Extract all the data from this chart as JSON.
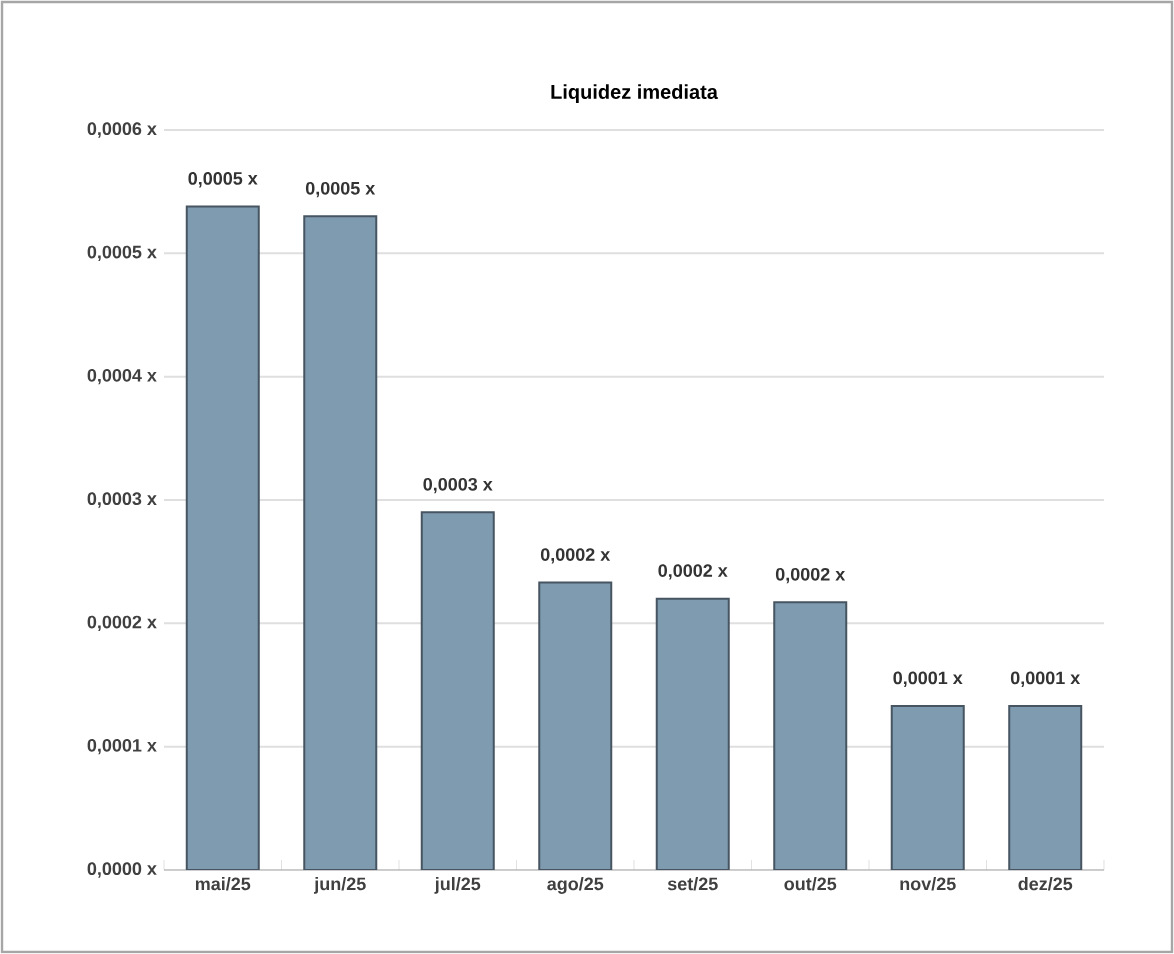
{
  "chart_data": {
    "type": "bar",
    "title": "Liquidez imediata",
    "categories": [
      "mai/25",
      "jun/25",
      "jul/25",
      "ago/25",
      "set/25",
      "out/25",
      "nov/25",
      "dez/25"
    ],
    "values": [
      0.000538,
      0.00053,
      0.00029,
      0.000233,
      0.00022,
      0.000217,
      0.000133,
      0.000133
    ],
    "value_labels": [
      "0,0005 x",
      "0,0005 x",
      "0,0003 x",
      "0,0002 x",
      "0,0002 x",
      "0,0002 x",
      "0,0001 x",
      "0,0001 x"
    ],
    "color": "#7f9bb0",
    "ylim": [
      0,
      0.0006
    ],
    "yticks": [
      {
        "value": 0,
        "label": "0,0000 x"
      },
      {
        "value": 0.0001,
        "label": "0,0001 x"
      },
      {
        "value": 0.0002,
        "label": "0,0002 x"
      },
      {
        "value": 0.0003,
        "label": "0,0003 x"
      },
      {
        "value": 0.0004,
        "label": "0,0004 x"
      },
      {
        "value": 0.0005,
        "label": "0,0005 x"
      },
      {
        "value": 0.0006,
        "label": "0,0006 x"
      }
    ],
    "grid": "y"
  }
}
